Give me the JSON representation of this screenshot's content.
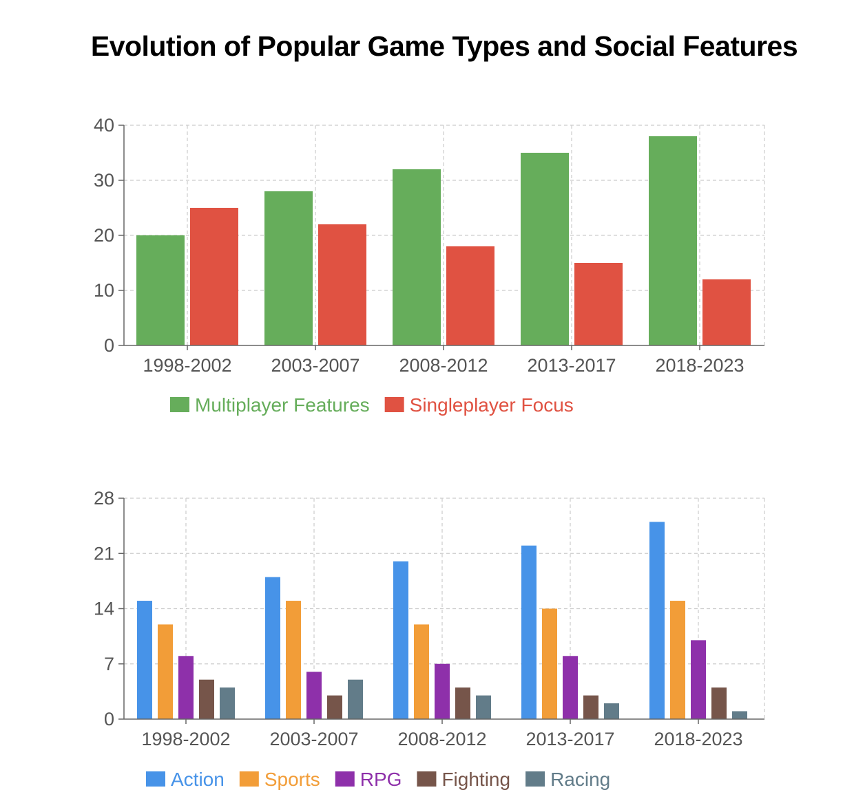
{
  "title": "Evolution of Popular Game Types and Social Features",
  "chart_data": [
    {
      "type": "bar",
      "categories": [
        "1998-2002",
        "2003-2007",
        "2008-2012",
        "2013-2017",
        "2018-2023"
      ],
      "series": [
        {
          "name": "Multiplayer Features",
          "color": "#66ad5b",
          "values": [
            20,
            28,
            32,
            35,
            38
          ]
        },
        {
          "name": "Singleplayer Focus",
          "color": "#e05242",
          "values": [
            25,
            22,
            18,
            15,
            12
          ]
        }
      ],
      "ylim": [
        0,
        40
      ],
      "yticks": [
        0,
        10,
        20,
        30,
        40
      ],
      "grid": true,
      "legend_position": "bottom"
    },
    {
      "type": "bar",
      "categories": [
        "1998-2002",
        "2003-2007",
        "2008-2012",
        "2013-2017",
        "2018-2023"
      ],
      "series": [
        {
          "name": "Action",
          "color": "#4793e8",
          "values": [
            15,
            18,
            20,
            22,
            25
          ]
        },
        {
          "name": "Sports",
          "color": "#f29d38",
          "values": [
            12,
            15,
            12,
            14,
            15
          ]
        },
        {
          "name": "RPG",
          "color": "#8e30aa",
          "values": [
            8,
            6,
            7,
            8,
            10
          ]
        },
        {
          "name": "Fighting",
          "color": "#76554a",
          "values": [
            5,
            3,
            4,
            3,
            4
          ]
        },
        {
          "name": "Racing",
          "color": "#627c89",
          "values": [
            4,
            5,
            3,
            2,
            1
          ]
        }
      ],
      "ylim": [
        0,
        28
      ],
      "yticks": [
        0,
        7,
        14,
        21,
        28
      ],
      "grid": true,
      "legend_position": "bottom"
    }
  ]
}
